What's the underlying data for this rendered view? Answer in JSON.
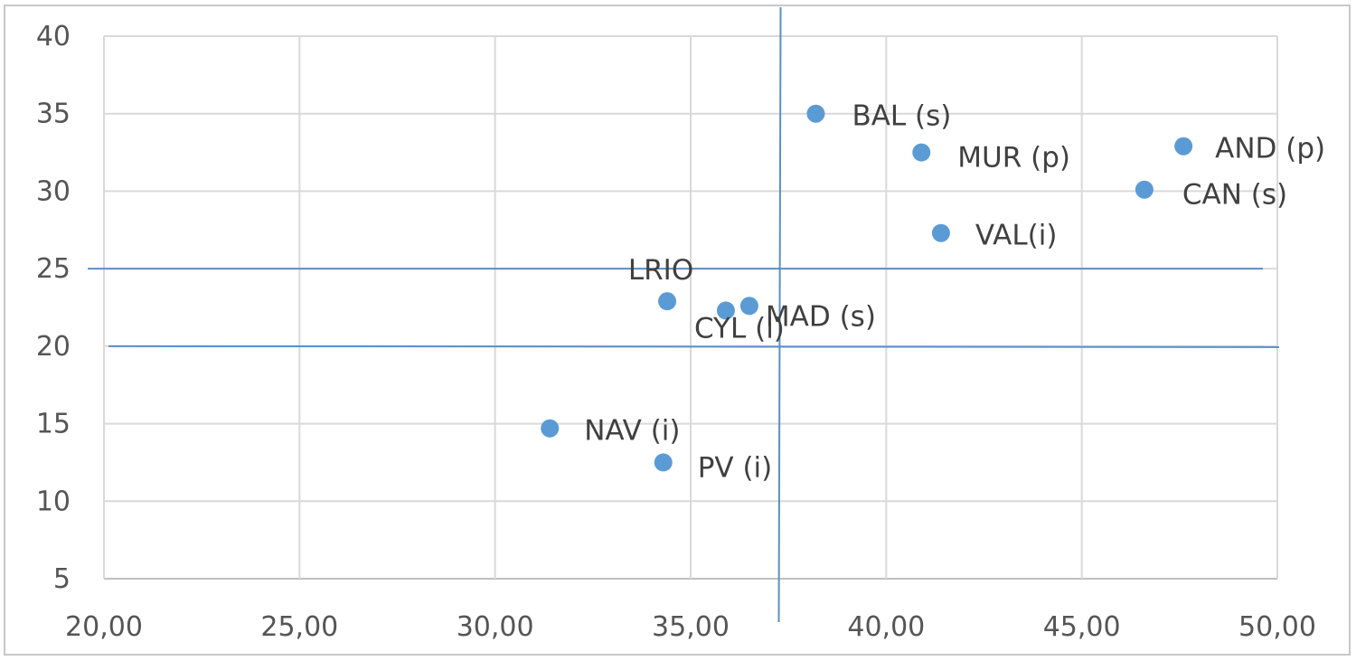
{
  "chart_data": {
    "type": "scatter",
    "title": "",
    "xlabel": "",
    "ylabel": "",
    "xlim": [
      20,
      50
    ],
    "ylim": [
      5,
      40
    ],
    "x_ticks": [
      20,
      25,
      30,
      35,
      40,
      45,
      50
    ],
    "y_ticks": [
      5,
      10,
      15,
      20,
      25,
      30,
      35,
      40
    ],
    "x_tick_labels": [
      "20,00",
      "25,00",
      "30,00",
      "35,00",
      "40,00",
      "45,00",
      "50,00"
    ],
    "y_tick_labels": [
      "5",
      "10",
      "15",
      "20",
      "25",
      "30",
      "35",
      "40"
    ],
    "grid": true,
    "legend": "none",
    "marker_color": "#5b9bd5",
    "reference_line_color": "#5b8fc4",
    "reference_lines": {
      "vertical_x": 37.3,
      "horizontal_y": [
        25,
        20
      ]
    },
    "points": [
      {
        "label": "BAL (s)",
        "x": 38.2,
        "y": 35.0
      },
      {
        "label": "MUR  (p)",
        "x": 40.9,
        "y": 32.5
      },
      {
        "label": "AND (p)",
        "x": 47.6,
        "y": 32.9
      },
      {
        "label": "CAN (s)",
        "x": 46.6,
        "y": 30.1
      },
      {
        "label": "VAL(i)",
        "x": 41.4,
        "y": 27.3
      },
      {
        "label": "LRIO",
        "x": 34.4,
        "y": 22.9
      },
      {
        "label": "CYL (i)",
        "x": 35.9,
        "y": 22.3
      },
      {
        "label": "MAD (s)",
        "x": 36.5,
        "y": 22.6
      },
      {
        "label": "NAV (i)",
        "x": 31.4,
        "y": 14.7
      },
      {
        "label": "PV (i)",
        "x": 34.3,
        "y": 12.5
      }
    ]
  }
}
